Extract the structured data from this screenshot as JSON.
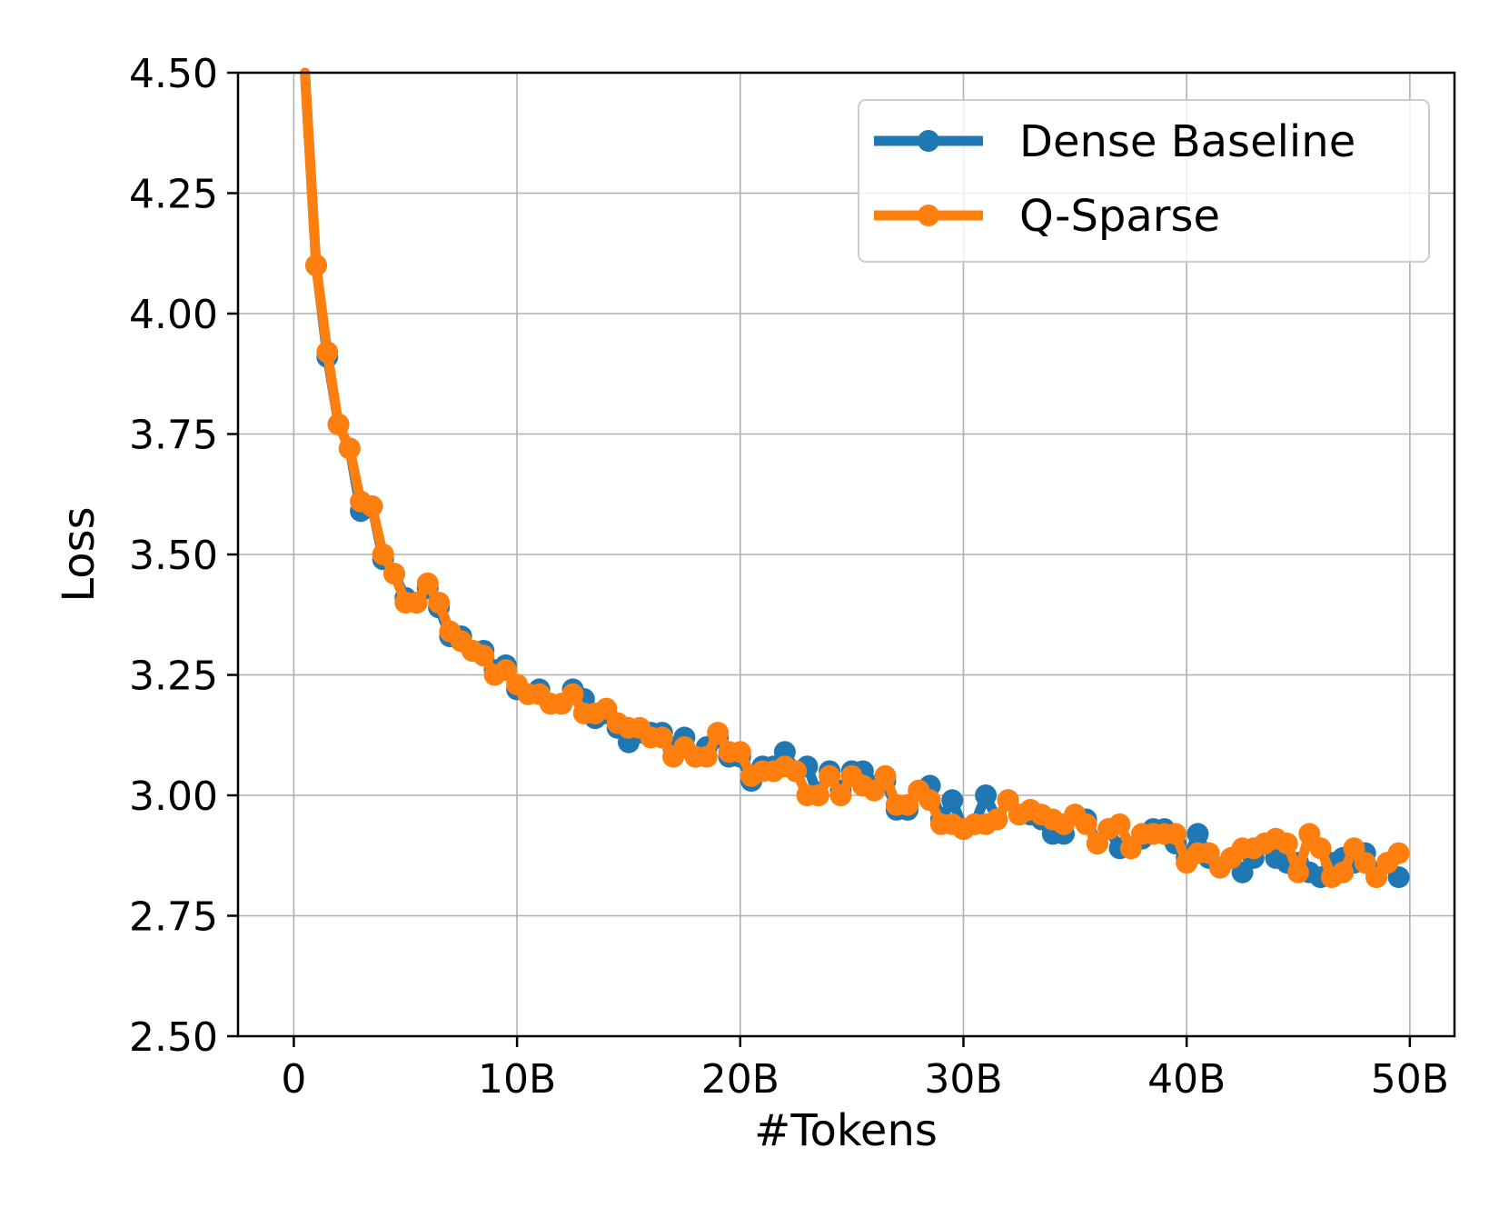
{
  "chart_data": {
    "type": "line",
    "title": "",
    "xlabel": "#Tokens",
    "ylabel": "Loss",
    "xlim": [
      -2.5,
      52
    ],
    "ylim": [
      2.5,
      4.5
    ],
    "x_ticks": [
      0,
      10,
      20,
      30,
      40,
      50
    ],
    "x_tick_labels": [
      "0",
      "10B",
      "20B",
      "30B",
      "40B",
      "50B"
    ],
    "y_ticks": [
      2.5,
      2.75,
      3.0,
      3.25,
      3.5,
      3.75,
      4.0,
      4.25,
      4.5
    ],
    "y_tick_labels": [
      "2.50",
      "2.75",
      "3.00",
      "3.25",
      "3.50",
      "3.75",
      "4.00",
      "4.25",
      "4.50"
    ],
    "grid": true,
    "legend_position": "top-right",
    "x_unit_note": "billions of tokens",
    "series": [
      {
        "name": "Dense Baseline",
        "color": "#1f77b4",
        "x": [
          0.5,
          1.0,
          1.5,
          2.0,
          2.5,
          3.0,
          3.5,
          4.0,
          4.5,
          5.0,
          5.5,
          6.0,
          6.5,
          7.0,
          7.5,
          8.0,
          8.5,
          9.0,
          9.5,
          10.0,
          10.5,
          11.0,
          11.5,
          12.0,
          12.5,
          13.0,
          13.5,
          14.0,
          14.5,
          15.0,
          15.5,
          16.0,
          16.5,
          17.0,
          17.5,
          18.0,
          18.5,
          19.0,
          19.5,
          20.0,
          20.5,
          21.0,
          21.5,
          22.0,
          22.5,
          23.0,
          23.5,
          24.0,
          24.5,
          25.0,
          25.5,
          26.0,
          26.5,
          27.0,
          27.5,
          28.0,
          28.5,
          29.0,
          29.5,
          30.0,
          30.5,
          31.0,
          31.5,
          32.0,
          32.5,
          33.0,
          33.5,
          34.0,
          34.5,
          35.0,
          35.5,
          36.0,
          36.5,
          37.0,
          37.5,
          38.0,
          38.5,
          39.0,
          39.5,
          40.0,
          40.5,
          41.0,
          41.5,
          42.0,
          42.5,
          43.0,
          43.5,
          44.0,
          44.5,
          45.0,
          45.5,
          46.0,
          46.5,
          47.0,
          47.5,
          48.0,
          48.5,
          49.0,
          49.5
        ],
        "y": [
          4.5,
          4.1,
          3.91,
          3.77,
          3.72,
          3.59,
          3.6,
          3.49,
          3.46,
          3.41,
          3.4,
          3.43,
          3.39,
          3.33,
          3.33,
          3.3,
          3.3,
          3.26,
          3.27,
          3.22,
          3.21,
          3.22,
          3.19,
          3.19,
          3.22,
          3.2,
          3.16,
          3.17,
          3.14,
          3.11,
          3.13,
          3.13,
          3.13,
          3.1,
          3.12,
          3.08,
          3.1,
          3.12,
          3.08,
          3.08,
          3.03,
          3.06,
          3.06,
          3.09,
          3.05,
          3.06,
          3.0,
          3.05,
          3.01,
          3.05,
          3.05,
          3.02,
          3.03,
          2.97,
          2.97,
          3.01,
          3.02,
          2.95,
          2.99,
          2.93,
          2.94,
          3.0,
          2.95,
          2.99,
          2.96,
          2.96,
          2.95,
          2.92,
          2.92,
          2.96,
          2.95,
          2.9,
          2.93,
          2.89,
          2.89,
          2.91,
          2.93,
          2.93,
          2.9,
          2.87,
          2.92,
          2.87,
          2.85,
          2.87,
          2.84,
          2.87,
          2.9,
          2.87,
          2.86,
          2.86,
          2.84,
          2.83,
          2.86,
          2.87,
          2.86,
          2.88,
          2.84,
          2.86,
          2.83
        ],
        "marker": "circle"
      },
      {
        "name": "Q-Sparse",
        "color": "#ff7f0e",
        "x": [
          0.5,
          1.0,
          1.5,
          2.0,
          2.5,
          3.0,
          3.5,
          4.0,
          4.5,
          5.0,
          5.5,
          6.0,
          6.5,
          7.0,
          7.5,
          8.0,
          8.5,
          9.0,
          9.5,
          10.0,
          10.5,
          11.0,
          11.5,
          12.0,
          12.5,
          13.0,
          13.5,
          14.0,
          14.5,
          15.0,
          15.5,
          16.0,
          16.5,
          17.0,
          17.5,
          18.0,
          18.5,
          19.0,
          19.5,
          20.0,
          20.5,
          21.0,
          21.5,
          22.0,
          22.5,
          23.0,
          23.5,
          24.0,
          24.5,
          25.0,
          25.5,
          26.0,
          26.5,
          27.0,
          27.5,
          28.0,
          28.5,
          29.0,
          29.5,
          30.0,
          30.5,
          31.0,
          31.5,
          32.0,
          32.5,
          33.0,
          33.5,
          34.0,
          34.5,
          35.0,
          35.5,
          36.0,
          36.5,
          37.0,
          37.5,
          38.0,
          38.5,
          39.0,
          39.5,
          40.0,
          40.5,
          41.0,
          41.5,
          42.0,
          42.5,
          43.0,
          43.5,
          44.0,
          44.5,
          45.0,
          45.5,
          46.0,
          46.5,
          47.0,
          47.5,
          48.0,
          48.5,
          49.0,
          49.5
        ],
        "y": [
          4.5,
          4.1,
          3.92,
          3.77,
          3.72,
          3.61,
          3.6,
          3.5,
          3.46,
          3.4,
          3.4,
          3.44,
          3.4,
          3.34,
          3.32,
          3.3,
          3.29,
          3.25,
          3.26,
          3.23,
          3.21,
          3.21,
          3.19,
          3.19,
          3.21,
          3.17,
          3.17,
          3.18,
          3.15,
          3.14,
          3.14,
          3.12,
          3.12,
          3.08,
          3.1,
          3.08,
          3.08,
          3.13,
          3.09,
          3.09,
          3.04,
          3.05,
          3.05,
          3.06,
          3.05,
          3.0,
          3.0,
          3.04,
          3.0,
          3.04,
          3.02,
          3.01,
          3.04,
          2.98,
          2.98,
          3.01,
          2.99,
          2.94,
          2.94,
          2.93,
          2.94,
          2.94,
          2.95,
          2.99,
          2.96,
          2.97,
          2.96,
          2.95,
          2.94,
          2.96,
          2.94,
          2.9,
          2.93,
          2.94,
          2.89,
          2.92,
          2.92,
          2.92,
          2.92,
          2.86,
          2.88,
          2.88,
          2.85,
          2.87,
          2.89,
          2.89,
          2.9,
          2.91,
          2.9,
          2.84,
          2.92,
          2.89,
          2.83,
          2.84,
          2.89,
          2.86,
          2.83,
          2.86,
          2.88
        ],
        "marker": "circle"
      }
    ]
  }
}
